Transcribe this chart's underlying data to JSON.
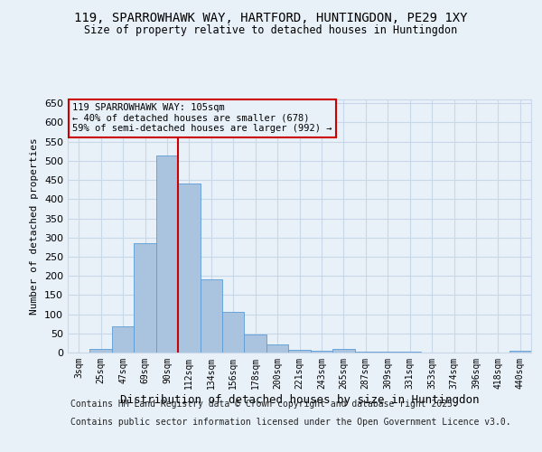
{
  "title_line1": "119, SPARROWHAWK WAY, HARTFORD, HUNTINGDON, PE29 1XY",
  "title_line2": "Size of property relative to detached houses in Huntingdon",
  "xlabel": "Distribution of detached houses by size in Huntingdon",
  "ylabel": "Number of detached properties",
  "categories": [
    "3sqm",
    "25sqm",
    "47sqm",
    "69sqm",
    "90sqm",
    "112sqm",
    "134sqm",
    "156sqm",
    "178sqm",
    "200sqm",
    "221sqm",
    "243sqm",
    "265sqm",
    "287sqm",
    "309sqm",
    "331sqm",
    "353sqm",
    "374sqm",
    "396sqm",
    "418sqm",
    "440sqm"
  ],
  "values": [
    0,
    10,
    68,
    285,
    513,
    440,
    192,
    107,
    46,
    21,
    8,
    5,
    10,
    3,
    3,
    2,
    1,
    1,
    1,
    0,
    5
  ],
  "bar_color": "#aac4e0",
  "bar_edge_color": "#5b9bd5",
  "grid_color": "#c8d8e8",
  "background_color": "#e8f0f8",
  "vline_x": 4.5,
  "vline_color": "#cc0000",
  "annotation_text": "119 SPARROWHAWK WAY: 105sqm\n← 40% of detached houses are smaller (678)\n59% of semi-detached houses are larger (992) →",
  "annotation_box_color": "#cc0000",
  "ylim": [
    0,
    660
  ],
  "yticks": [
    0,
    50,
    100,
    150,
    200,
    250,
    300,
    350,
    400,
    450,
    500,
    550,
    600,
    650
  ],
  "footer_line1": "Contains HM Land Registry data © Crown copyright and database right 2025.",
  "footer_line2": "Contains public sector information licensed under the Open Government Licence v3.0."
}
